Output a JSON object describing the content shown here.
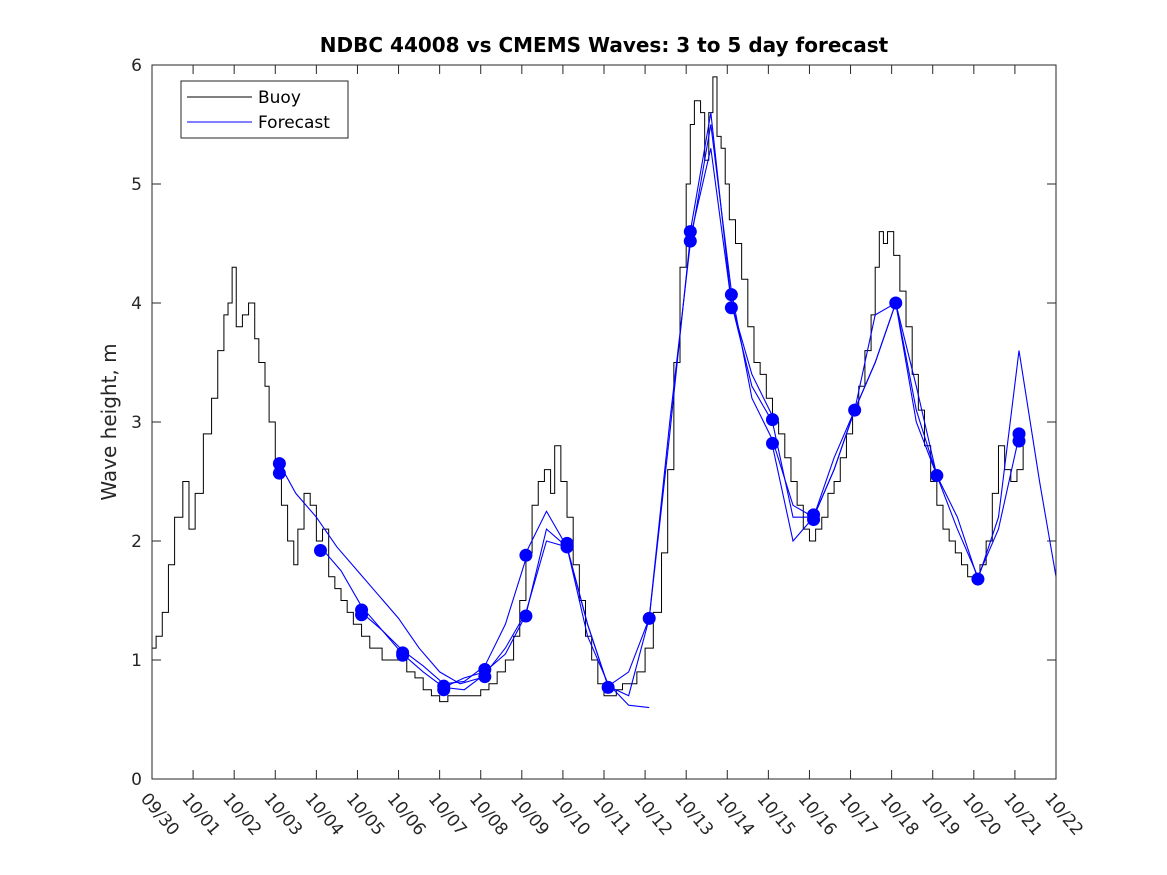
{
  "chart_data": {
    "type": "line",
    "title": "NDBC 44008 vs CMEMS Waves: 3 to 5 day forecast",
    "xlabel": "",
    "ylabel": "Wave height, m",
    "xlim": [
      0,
      22
    ],
    "ylim": [
      0,
      6
    ],
    "x_tick_labels": [
      "09/30",
      "10/01",
      "10/02",
      "10/03",
      "10/04",
      "10/05",
      "10/06",
      "10/07",
      "10/08",
      "10/09",
      "10/10",
      "10/11",
      "10/12",
      "10/13",
      "10/14",
      "10/15",
      "10/16",
      "10/17",
      "10/18",
      "10/19",
      "10/20",
      "10/21",
      "10/22"
    ],
    "y_ticks": [
      0,
      1,
      2,
      3,
      4,
      5,
      6
    ],
    "legend": {
      "position": "top-left",
      "entries": [
        {
          "label": "Buoy",
          "color": "#000000"
        },
        {
          "label": "Forecast",
          "color": "#0000ff"
        }
      ]
    },
    "series": [
      {
        "name": "Buoy",
        "color": "#000000",
        "x": [
          0,
          0.1,
          0.25,
          0.4,
          0.55,
          0.75,
          0.9,
          1.05,
          1.25,
          1.45,
          1.6,
          1.75,
          1.85,
          1.95,
          2.05,
          2.2,
          2.35,
          2.5,
          2.6,
          2.75,
          2.85,
          3.0,
          3.15,
          3.3,
          3.45,
          3.55,
          3.7,
          3.85,
          4.0,
          4.15,
          4.3,
          4.45,
          4.6,
          4.75,
          4.9,
          5.1,
          5.3,
          5.45,
          5.6,
          5.8,
          6.0,
          6.2,
          6.4,
          6.6,
          6.8,
          7.0,
          7.2,
          7.4,
          7.6,
          7.8,
          8.0,
          8.2,
          8.4,
          8.6,
          8.8,
          8.95,
          9.1,
          9.25,
          9.4,
          9.55,
          9.7,
          9.8,
          9.95,
          10.1,
          10.25,
          10.4,
          10.55,
          10.7,
          10.85,
          11.0,
          11.15,
          11.3,
          11.45,
          11.6,
          11.8,
          12.0,
          12.2,
          12.4,
          12.55,
          12.7,
          12.85,
          13.0,
          13.1,
          13.2,
          13.35,
          13.45,
          13.55,
          13.65,
          13.75,
          13.85,
          13.95,
          14.05,
          14.2,
          14.35,
          14.5,
          14.65,
          14.8,
          14.95,
          15.1,
          15.25,
          15.4,
          15.55,
          15.7,
          15.85,
          16.0,
          16.15,
          16.3,
          16.45,
          16.6,
          16.75,
          16.9,
          17.05,
          17.2,
          17.35,
          17.5,
          17.6,
          17.7,
          17.8,
          17.9,
          18.05,
          18.2,
          18.35,
          18.5,
          18.65,
          18.8,
          18.95,
          19.1,
          19.25,
          19.4,
          19.55,
          19.7,
          19.85,
          20.0,
          20.15,
          20.3,
          20.45,
          20.6,
          20.75,
          20.9,
          21.05,
          21.2
        ],
        "y": [
          1.1,
          1.2,
          1.4,
          1.8,
          2.2,
          2.5,
          2.1,
          2.4,
          2.9,
          3.2,
          3.6,
          3.9,
          4.0,
          4.3,
          3.8,
          3.9,
          4.0,
          3.7,
          3.5,
          3.3,
          3.0,
          2.6,
          2.3,
          2.0,
          1.8,
          2.1,
          2.4,
          2.3,
          2.0,
          2.1,
          1.7,
          1.6,
          1.5,
          1.4,
          1.3,
          1.2,
          1.1,
          1.1,
          1.0,
          1.0,
          1.0,
          0.9,
          0.85,
          0.75,
          0.7,
          0.65,
          0.7,
          0.7,
          0.7,
          0.7,
          0.75,
          0.8,
          0.9,
          1.0,
          1.2,
          1.5,
          1.9,
          2.3,
          2.5,
          2.6,
          2.4,
          2.8,
          2.5,
          2.2,
          1.8,
          1.5,
          1.2,
          1.0,
          0.8,
          0.7,
          0.7,
          0.75,
          0.8,
          0.8,
          0.9,
          1.1,
          1.4,
          1.9,
          2.6,
          3.5,
          4.3,
          5.0,
          5.5,
          5.7,
          5.6,
          5.2,
          5.6,
          5.9,
          5.4,
          5.3,
          5.0,
          4.7,
          4.5,
          4.2,
          3.8,
          3.5,
          3.4,
          3.2,
          3.0,
          2.9,
          2.7,
          2.5,
          2.3,
          2.1,
          2.0,
          2.1,
          2.2,
          2.4,
          2.5,
          2.7,
          2.9,
          3.1,
          3.3,
          3.6,
          3.9,
          4.3,
          4.6,
          4.5,
          4.6,
          4.4,
          4.1,
          3.8,
          3.4,
          3.1,
          2.8,
          2.5,
          2.3,
          2.1,
          2.0,
          1.9,
          1.8,
          1.7,
          1.7,
          1.8,
          2.0,
          2.4,
          2.8,
          2.6,
          2.5,
          2.6,
          2.8
        ]
      },
      {
        "name": "Forecast run 1",
        "color": "#0000ff",
        "x": [
          3.1,
          3.5,
          4.0,
          4.5,
          5.0,
          5.5,
          6.0,
          6.5,
          7.0,
          7.5,
          8.0
        ],
        "y": [
          2.65,
          2.4,
          2.2,
          1.95,
          1.75,
          1.55,
          1.35,
          1.1,
          0.9,
          0.8,
          0.85
        ]
      },
      {
        "name": "Forecast run 2",
        "color": "#0000ff",
        "x": [
          4.1,
          4.6,
          5.1,
          5.6,
          6.1,
          6.6,
          7.1,
          7.6,
          8.1,
          8.6,
          9.1
        ],
        "y": [
          1.95,
          1.75,
          1.45,
          1.25,
          1.08,
          0.95,
          0.8,
          0.82,
          0.95,
          1.3,
          1.85
        ]
      },
      {
        "name": "Forecast run 3",
        "color": "#0000ff",
        "x": [
          5.1,
          5.6,
          6.1,
          6.6,
          7.1,
          7.6,
          8.1,
          8.6,
          9.1,
          9.6,
          10.1,
          10.6,
          11.1
        ],
        "y": [
          1.4,
          1.25,
          1.05,
          0.9,
          0.77,
          0.75,
          0.88,
          1.1,
          1.4,
          2.0,
          1.95,
          1.3,
          0.78
        ]
      },
      {
        "name": "Forecast run 4",
        "color": "#0000ff",
        "x": [
          7.1,
          7.6,
          8.1,
          8.6,
          9.1,
          9.6,
          10.1,
          10.6,
          11.1,
          11.6,
          12.1
        ],
        "y": [
          0.77,
          0.85,
          0.9,
          1.05,
          1.38,
          2.1,
          1.95,
          1.2,
          0.8,
          0.62,
          0.6
        ]
      },
      {
        "name": "Forecast run 5",
        "color": "#0000ff",
        "x": [
          9.1,
          9.6,
          10.1,
          10.6,
          11.1,
          11.6,
          12.1,
          12.6,
          13.1,
          13.6,
          14.1,
          14.6,
          15.1
        ],
        "y": [
          1.9,
          2.25,
          1.95,
          1.3,
          0.78,
          0.7,
          1.35,
          2.9,
          4.55,
          5.3,
          4.0,
          3.4,
          3.05
        ]
      },
      {
        "name": "Forecast run 6",
        "color": "#0000ff",
        "x": [
          11.1,
          11.6,
          12.1,
          12.6,
          13.1,
          13.6,
          14.1,
          14.6,
          15.1,
          15.6,
          16.1,
          16.6,
          17.1
        ],
        "y": [
          0.78,
          0.9,
          1.35,
          3.0,
          4.5,
          5.5,
          4.1,
          3.2,
          2.85,
          2.3,
          2.2,
          2.6,
          3.1
        ]
      },
      {
        "name": "Forecast run 7",
        "color": "#0000ff",
        "x": [
          13.1,
          13.6,
          14.1,
          14.6,
          15.1,
          15.6,
          16.1,
          16.6,
          17.1,
          17.6,
          18.1,
          18.6,
          19.1
        ],
        "y": [
          4.6,
          5.6,
          4.0,
          3.3,
          3.0,
          2.2,
          2.2,
          2.6,
          3.1,
          3.9,
          4.0,
          3.3,
          2.55
        ]
      },
      {
        "name": "Forecast run 8",
        "color": "#0000ff",
        "x": [
          15.1,
          15.6,
          16.1,
          16.6,
          17.1,
          17.6,
          18.1,
          18.6,
          19.1,
          19.6,
          20.1,
          20.6,
          21.1
        ],
        "y": [
          2.8,
          2.0,
          2.2,
          2.7,
          3.1,
          3.5,
          4.0,
          3.0,
          2.55,
          2.1,
          1.7,
          2.1,
          2.88
        ]
      },
      {
        "name": "Forecast run 9",
        "color": "#0000ff",
        "x": [
          17.1,
          17.6,
          18.1,
          18.6,
          19.1,
          19.6,
          20.1,
          20.6,
          21.1,
          21.6,
          22.0
        ],
        "y": [
          3.1,
          3.5,
          4.0,
          3.1,
          2.55,
          2.2,
          1.68,
          2.2,
          3.6,
          2.5,
          1.7
        ]
      }
    ],
    "markers": {
      "color": "#0000ff",
      "points": [
        [
          3.1,
          2.65
        ],
        [
          3.1,
          2.57
        ],
        [
          4.1,
          1.92
        ],
        [
          5.1,
          1.42
        ],
        [
          5.1,
          1.38
        ],
        [
          6.1,
          1.06
        ],
        [
          6.1,
          1.04
        ],
        [
          7.1,
          0.78
        ],
        [
          7.1,
          0.75
        ],
        [
          8.1,
          0.92
        ],
        [
          8.1,
          0.86
        ],
        [
          9.1,
          1.88
        ],
        [
          9.1,
          1.37
        ],
        [
          10.1,
          1.98
        ],
        [
          10.1,
          1.95
        ],
        [
          11.1,
          0.77
        ],
        [
          12.1,
          1.35
        ],
        [
          13.1,
          4.6
        ],
        [
          13.1,
          4.52
        ],
        [
          14.1,
          4.07
        ],
        [
          14.1,
          3.96
        ],
        [
          15.1,
          3.02
        ],
        [
          15.1,
          2.82
        ],
        [
          16.1,
          2.22
        ],
        [
          16.1,
          2.18
        ],
        [
          17.1,
          3.1
        ],
        [
          18.1,
          4.0
        ],
        [
          19.1,
          2.55
        ],
        [
          20.1,
          1.68
        ],
        [
          21.1,
          2.9
        ],
        [
          21.1,
          2.84
        ]
      ]
    }
  }
}
